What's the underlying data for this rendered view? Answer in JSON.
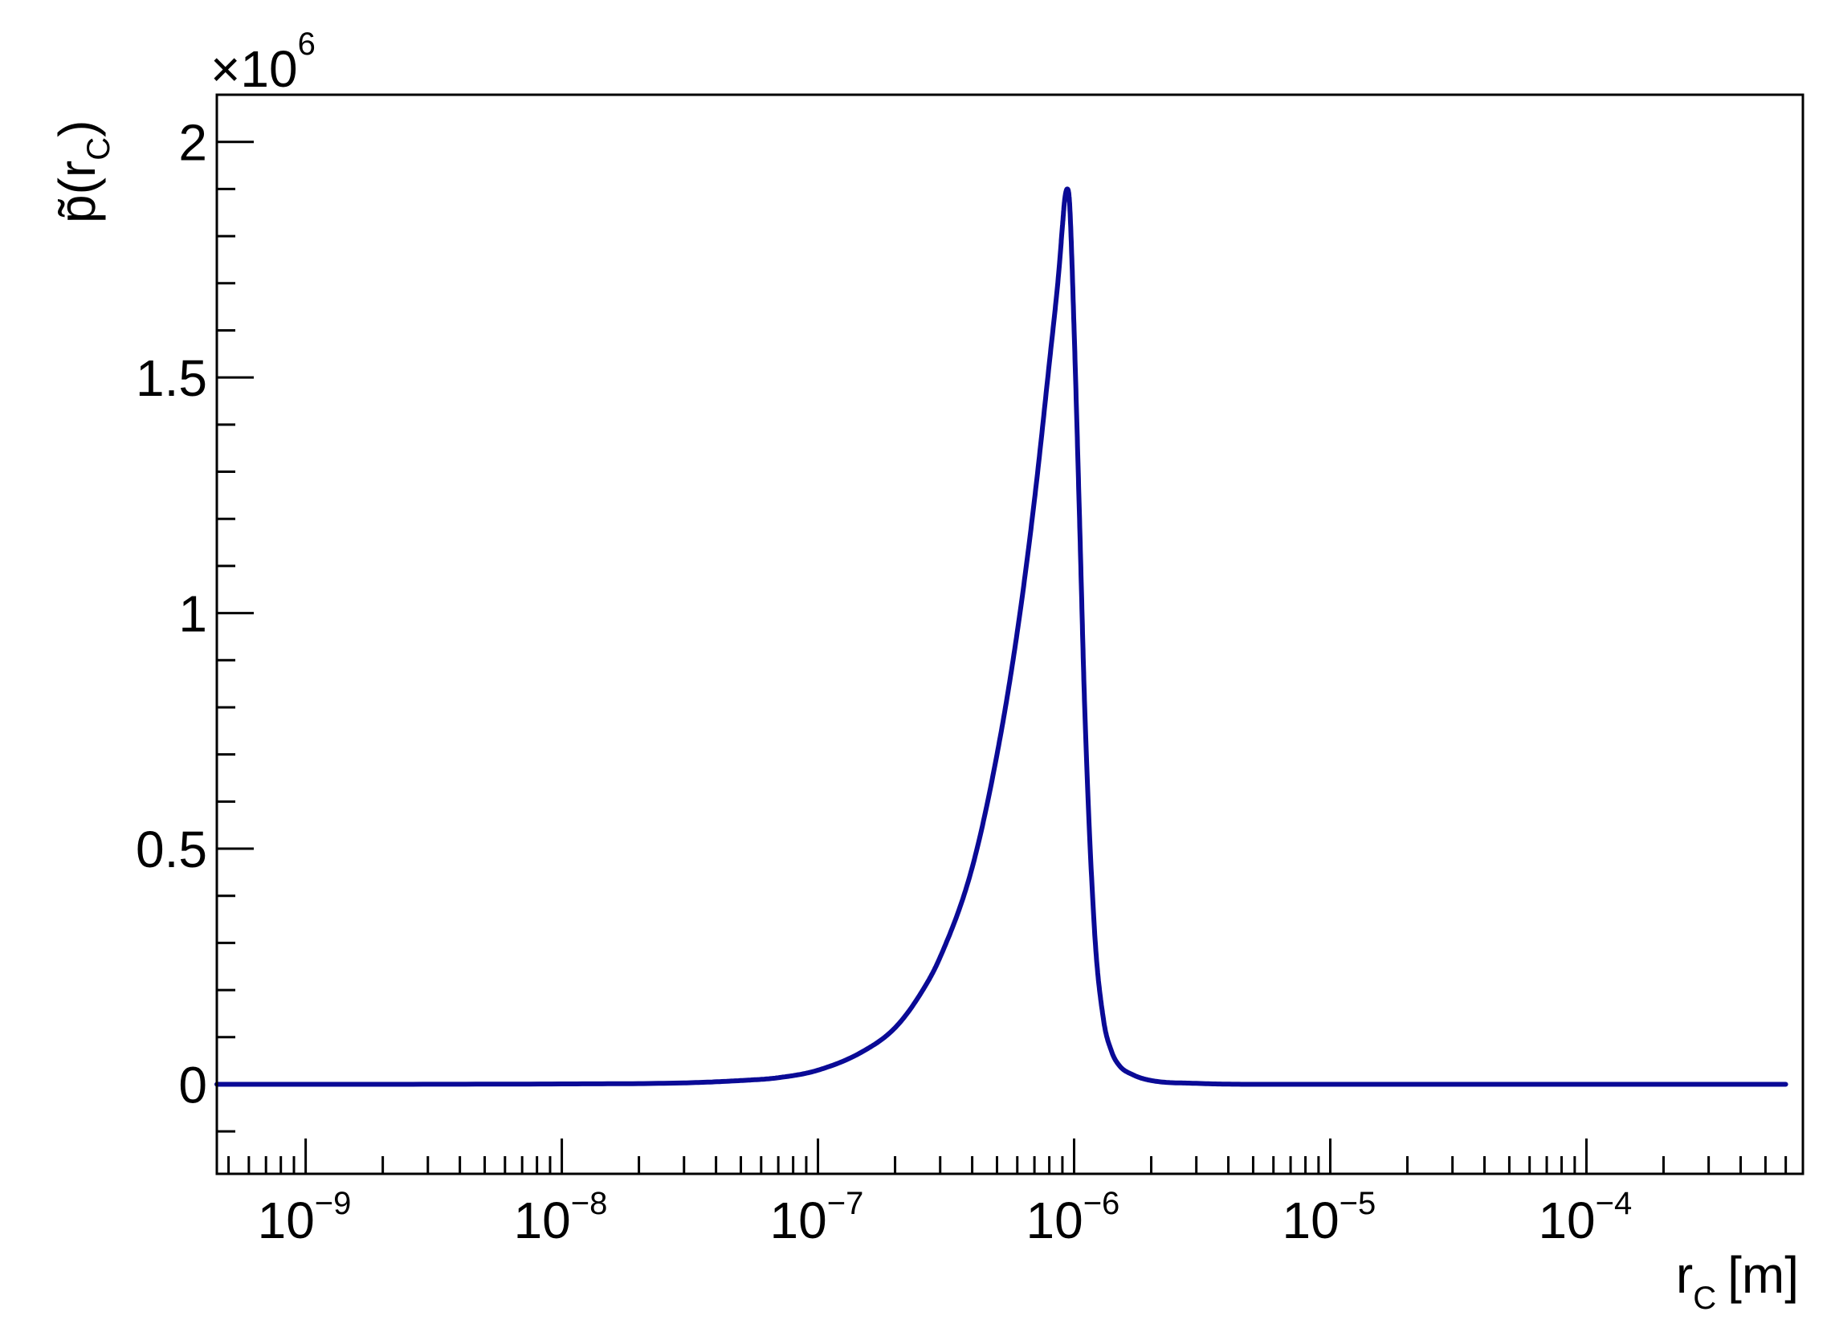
{
  "chart_data": {
    "type": "line",
    "xlabel": "r",
    "xlabel_sub": "C",
    "xlabel_unit": "[m]",
    "ylabel": "p̃(r",
    "ylabel_sub": "C",
    "ylabel_close": ")",
    "y_multiplier_base": "×10",
    "y_multiplier_exp": "6",
    "x_scale": "log",
    "xlim": [
      4.5e-10,
      0.0007
    ],
    "ylim": [
      -0.19,
      2.1
    ],
    "x_ticks": [
      {
        "base": "10",
        "exp": "−9",
        "value": 1e-09
      },
      {
        "base": "10",
        "exp": "−8",
        "value": 1e-08
      },
      {
        "base": "10",
        "exp": "−7",
        "value": 1e-07
      },
      {
        "base": "10",
        "exp": "−6",
        "value": 1e-06
      },
      {
        "base": "10",
        "exp": "−5",
        "value": 1e-05
      },
      {
        "base": "10",
        "exp": "−4",
        "value": 0.0001
      }
    ],
    "y_ticks": [
      "0",
      "0.5",
      "1",
      "1.5",
      "2"
    ],
    "y_tick_values": [
      0,
      0.5,
      1,
      1.5,
      2
    ],
    "grid": false,
    "line_color": "#0a0a96",
    "series": [
      {
        "x": [
          4.5e-10,
          1e-09,
          1e-08,
          3e-08,
          5e-08,
          7e-08,
          1e-07,
          1.5e-07,
          2e-07,
          2.5e-07,
          3e-07,
          4e-07,
          5e-07,
          6e-07,
          7e-07,
          8e-07,
          8.7e-07,
          9e-07,
          9.2e-07,
          9.4e-07,
          9.6e-07,
          1e-06,
          1.05e-06,
          1.1e-06,
          1.2e-06,
          1.3e-06,
          1.4e-06,
          1.5e-06,
          1.7e-06,
          2e-06,
          3e-06,
          5e-06,
          1e-05,
          0.0006
        ],
        "values": [
          0,
          0,
          0.0008,
          0.003,
          0.008,
          0.014,
          0.03,
          0.07,
          0.12,
          0.19,
          0.27,
          0.46,
          0.7,
          0.96,
          1.24,
          1.53,
          1.72,
          1.82,
          1.88,
          1.9,
          1.87,
          1.6,
          1.2,
          0.8,
          0.33,
          0.14,
          0.07,
          0.04,
          0.02,
          0.008,
          0.002,
          0,
          0,
          0
        ]
      }
    ]
  }
}
